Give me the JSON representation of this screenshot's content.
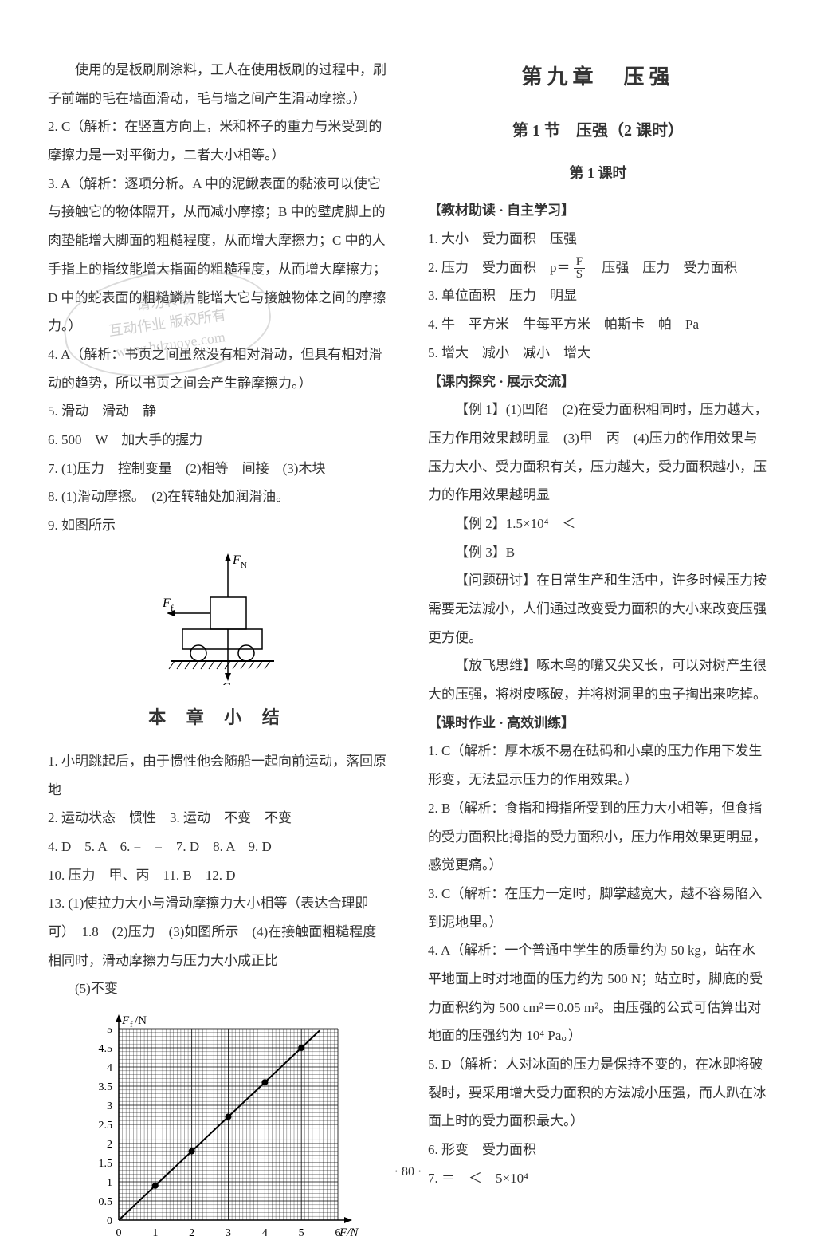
{
  "left": {
    "p1a": "使用的是板刷刷涂料，工人在使用板刷的过程中，刷子前端的毛在墙面滑动，毛与墙之间产生滑动摩擦。）",
    "p2": "2. C（解析：在竖直方向上，米和杯子的重力与米受到的摩擦力是一对平衡力，二者大小相等。）",
    "p3": "3. A（解析：逐项分析。A 中的泥鳅表面的黏液可以使它与接触它的物体隔开，从而减小摩擦；B 中的壁虎脚上的肉垫能增大脚面的粗糙程度，从而增大摩擦力；C 中的人手指上的指纹能增大指面的粗糙程度，从而增大摩擦力；D 中的蛇表面的粗糙鳞片能增大它与接触物体之间的摩擦力。）",
    "p4": "4. A（解析：书页之间虽然没有相对滑动，但具有相对滑动的趋势，所以书页之间会产生静摩擦力。）",
    "p5": "5. 滑动　滑动　静",
    "p6": "6. 500　W　加大手的握力",
    "p7": "7. (1)压力　控制变量　(2)相等　间接　(3)木块",
    "p8": "8. (1)滑动摩擦。　(2)在转轴处加润滑油。",
    "p9": "9. 如图所示",
    "summary_title": "本 章 小 结",
    "s1": "1. 小明跳起后，由于惯性他会随船一起向前运动，落回原地",
    "s2": "2. 运动状态　惯性　3. 运动　不变　不变",
    "s3": "4. D　5. A　6. =　=　7. D　8. A　9. D",
    "s4": "10. 压力　甲、丙　11. B　12. D",
    "s5a": "13. (1)使拉力大小与滑动摩擦力大小相等（表达合理即可）　1.8　(2)压力　(3)如图所示　(4)在接触面粗糙程度相同时，滑动摩擦力与压力大小成正比",
    "s5b": "(5)不变",
    "fbd": {
      "Fn": "F",
      "Fsub": "N",
      "Ff": "F",
      "Ffsub": "f",
      "G": "G"
    },
    "chart": {
      "ylabel": "F",
      "ylabelSub": "f",
      "yunit": "/N",
      "xlabel": "F/N",
      "xticks": [
        "0",
        "1",
        "2",
        "3",
        "4",
        "5",
        "6"
      ],
      "yticks": [
        "0",
        "0.5",
        "1",
        "1.5",
        "2",
        "2.5",
        "3",
        "3.5",
        "4",
        "4.5",
        "5"
      ],
      "xmax": 6,
      "ymax": 5,
      "points": [
        [
          1,
          0.9
        ],
        [
          2,
          1.8
        ],
        [
          3,
          2.7
        ],
        [
          4,
          3.6
        ],
        [
          5,
          4.5
        ]
      ],
      "bg": "#ffffff",
      "axis": "#000000",
      "grid": "#000000",
      "line": "#000000",
      "marker": "#000000"
    }
  },
  "right": {
    "chapter": "第九章　压强",
    "section": "第 1 节　压强（2 课时）",
    "lesson": "第 1 课时",
    "h1": "【教材助读 · 自主学习】",
    "r1": "1. 大小　受力面积　压强",
    "r2a": "2. 压力　受力面积　p＝",
    "r2_frac_num": "F",
    "r2_frac_den": "S",
    "r2b": "　压强　压力　受力面积",
    "r3": "3. 单位面积　压力　明显",
    "r4": "4. 牛　平方米　牛每平方米　帕斯卡　帕　Pa",
    "r5": "5. 增大　减小　减小　增大",
    "h2": "【课内探究 · 展示交流】",
    "ex1": "【例 1】(1)凹陷　(2)在受力面积相同时，压力越大，压力作用效果越明显　(3)甲　丙　(4)压力的作用效果与压力大小、受力面积有关，压力越大，受力面积越小，压力的作用效果越明显",
    "ex2": "【例 2】1.5×10⁴　＜",
    "ex3": "【例 3】B",
    "disc": "【问题研讨】在日常生产和生活中，许多时候压力按需要无法减小，人们通过改变受力面积的大小来改变压强更方便。",
    "fly": "【放飞思维】啄木鸟的嘴又尖又长，可以对树产生很大的压强，将树皮啄破，并将树洞里的虫子掏出来吃掉。",
    "h3": "【课时作业 · 高效训练】",
    "q1": "1. C（解析：厚木板不易在砝码和小桌的压力作用下发生形变，无法显示压力的作用效果。）",
    "q2": "2. B（解析：食指和拇指所受到的压力大小相等，但食指的受力面积比拇指的受力面积小，压力作用效果更明显，感觉更痛。）",
    "q3": "3. C（解析：在压力一定时，脚掌越宽大，越不容易陷入到泥地里。）",
    "q4": "4. A（解析：一个普通中学生的质量约为 50 kg，站在水平地面上时对地面的压力约为 500 N；站立时，脚底的受力面积约为 500 cm²＝0.05 m²。由压强的公式可估算出对地面的压强约为 10⁴ Pa。）",
    "q5": "5. D（解析：人对冰面的压力是保持不变的，在冰即将破裂时，要采用增大受力面积的方法减小压强，而人趴在冰面上时的受力面积最大。）",
    "q6": "6. 形变　受力面积",
    "q7": "7. ＝　＜　5×10⁴"
  },
  "watermark": {
    "l1": "请勿转载",
    "l2": "互动作业 版权所有",
    "l3": "www.hdzuoye.com"
  },
  "pageNum": "· 80 ·"
}
